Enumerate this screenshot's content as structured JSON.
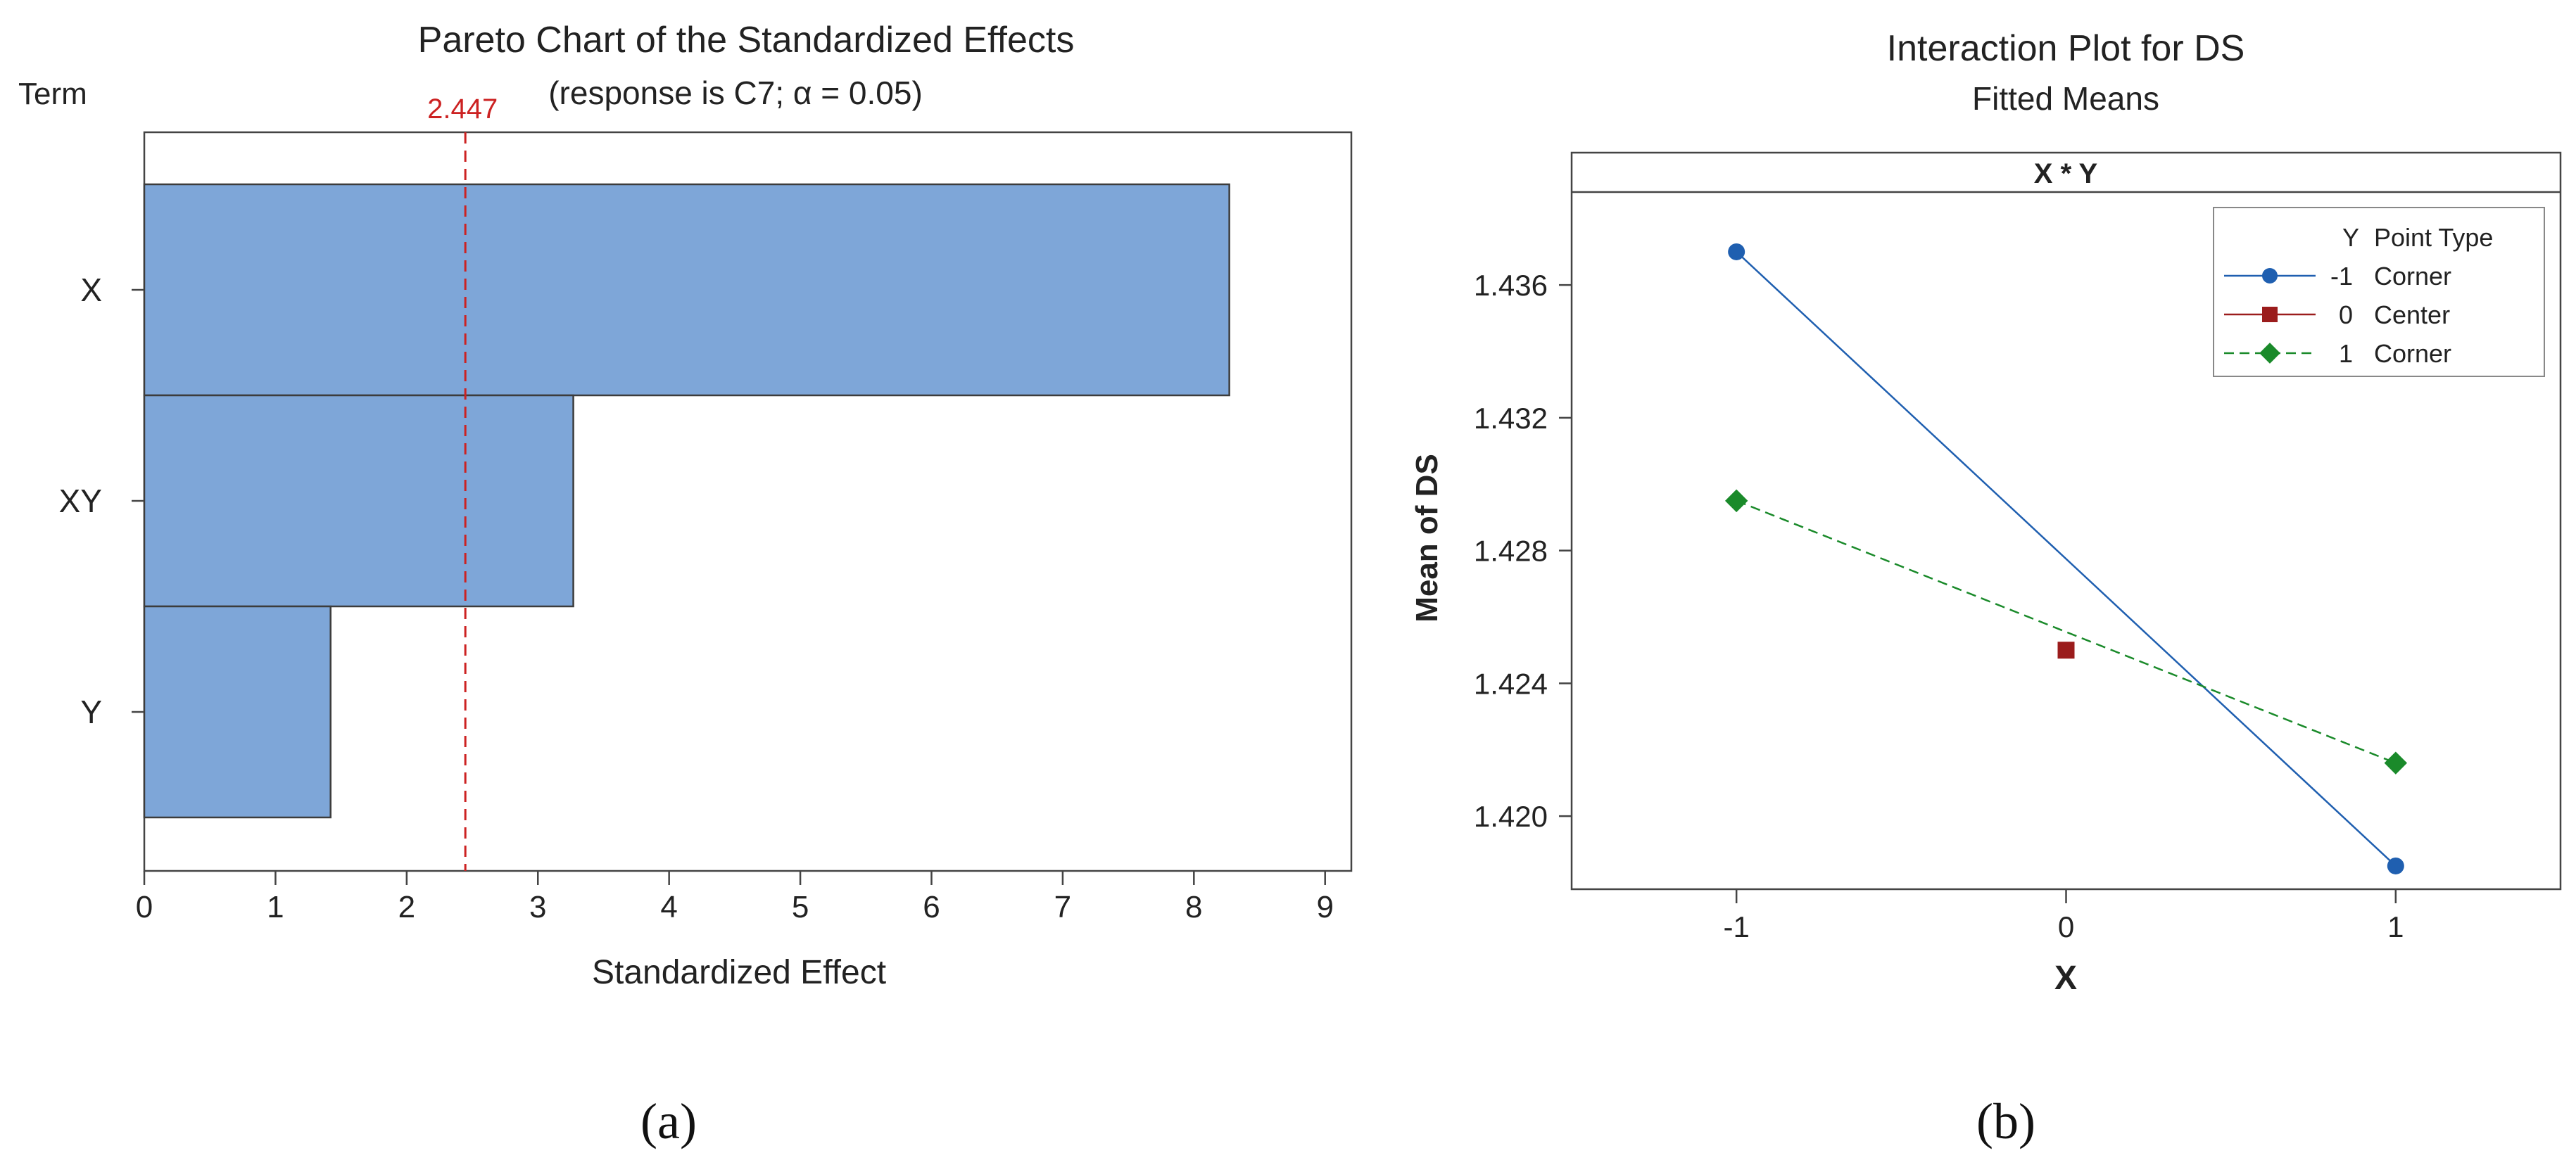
{
  "chart_data": [
    {
      "id": "a",
      "type": "bar",
      "orientation": "horizontal",
      "title": "Pareto Chart of the Standardized Effects",
      "subtitle": "(response is C7; α = 0.05)",
      "term_label": "Term",
      "xlabel": "Standardized Effect",
      "categories": [
        "X",
        "XY",
        "Y"
      ],
      "values": [
        8.27,
        3.27,
        1.42
      ],
      "xlim": [
        0,
        9.2
      ],
      "xticks": [
        0,
        1,
        2,
        3,
        4,
        5,
        6,
        7,
        8,
        9
      ],
      "reference_line": {
        "value": 2.447,
        "label": "2.447",
        "color": "#cc2222"
      },
      "bar_color": "#7ea6d8",
      "panel_label": "(a)"
    },
    {
      "id": "b",
      "type": "line",
      "title": "Interaction Plot for DS",
      "subtitle": "Fitted Means",
      "facet_label": "X * Y",
      "xlabel": "X",
      "ylabel": "Mean of DS",
      "xlim": [
        -1.5,
        1.5
      ],
      "ylim": [
        1.4178,
        1.4388
      ],
      "xticks": [
        -1,
        0,
        1
      ],
      "xtick_labels": [
        "-1",
        "0",
        "1"
      ],
      "yticks": [
        1.42,
        1.424,
        1.428,
        1.432,
        1.436
      ],
      "ytick_labels": [
        "1.420",
        "1.424",
        "1.428",
        "1.432",
        "1.436"
      ],
      "legend_header": [
        "Y",
        "Point Type"
      ],
      "series": [
        {
          "name": "-1",
          "y_label": "-1",
          "point_type": "Corner",
          "x": [
            -1,
            1
          ],
          "y": [
            1.437,
            1.4185
          ],
          "color": "#1f5fb0",
          "marker": "circle",
          "dash": ""
        },
        {
          "name": "0",
          "y_label": "0",
          "point_type": "Center",
          "x": [
            0
          ],
          "y": [
            1.425
          ],
          "color": "#9b1c1c",
          "marker": "square",
          "dash": ""
        },
        {
          "name": "1",
          "y_label": "1",
          "point_type": "Corner",
          "x": [
            -1,
            1
          ],
          "y": [
            1.4295,
            1.4216
          ],
          "color": "#1a8a2a",
          "marker": "diamond",
          "dash": "dashed"
        }
      ],
      "panel_label": "(b)"
    }
  ]
}
